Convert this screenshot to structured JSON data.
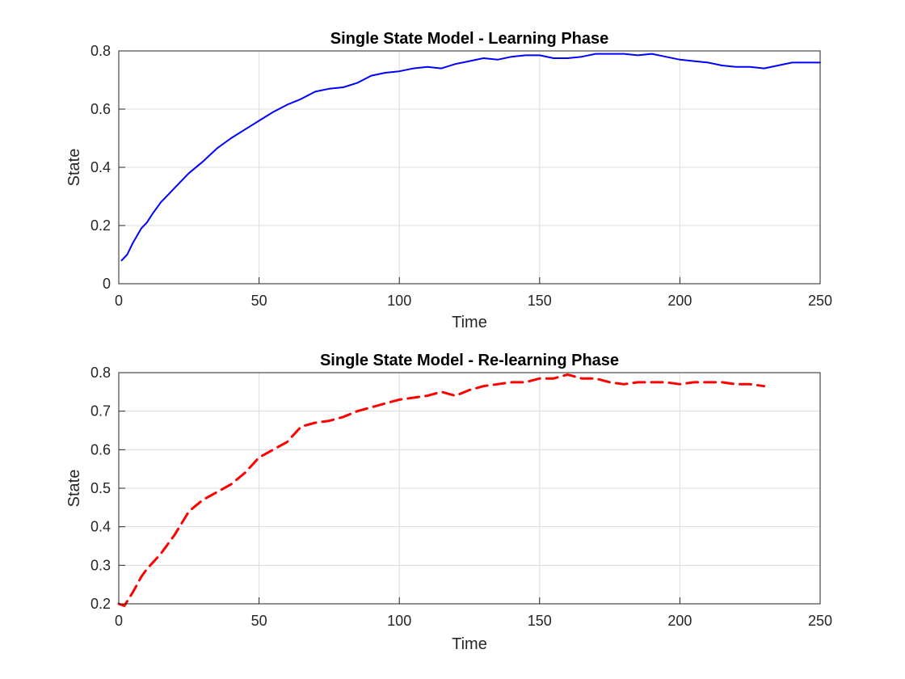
{
  "chart_data": [
    {
      "type": "line",
      "title": "Single State Model - Learning Phase",
      "xlabel": "Time",
      "ylabel": "State",
      "xlim": [
        0,
        250
      ],
      "ylim": [
        0,
        0.8
      ],
      "xticks": [
        "0",
        "50",
        "100",
        "150",
        "200",
        "250"
      ],
      "yticks": [
        "0",
        "0.2",
        "0.4",
        "0.6",
        "0.8"
      ],
      "grid": true,
      "series": [
        {
          "color": "#0000ff",
          "style": "solid",
          "x": [
            1,
            3,
            5,
            8,
            10,
            12,
            15,
            18,
            20,
            25,
            30,
            35,
            40,
            45,
            50,
            55,
            60,
            65,
            70,
            75,
            80,
            85,
            90,
            95,
            100,
            105,
            110,
            115,
            120,
            125,
            130,
            135,
            140,
            145,
            150,
            155,
            160,
            165,
            170,
            175,
            180,
            185,
            190,
            195,
            200,
            205,
            210,
            215,
            220,
            225,
            230,
            235,
            240,
            245,
            250
          ],
          "y": [
            0.08,
            0.1,
            0.14,
            0.19,
            0.21,
            0.24,
            0.28,
            0.31,
            0.33,
            0.38,
            0.42,
            0.465,
            0.5,
            0.53,
            0.56,
            0.59,
            0.615,
            0.635,
            0.66,
            0.67,
            0.675,
            0.69,
            0.715,
            0.725,
            0.73,
            0.74,
            0.745,
            0.74,
            0.755,
            0.765,
            0.775,
            0.77,
            0.78,
            0.785,
            0.785,
            0.775,
            0.775,
            0.78,
            0.79,
            0.79,
            0.79,
            0.785,
            0.79,
            0.78,
            0.77,
            0.765,
            0.76,
            0.75,
            0.745,
            0.745,
            0.74,
            0.75,
            0.76,
            0.76,
            0.76
          ]
        }
      ]
    },
    {
      "type": "line",
      "title": "Single State Model - Re-learning Phase",
      "xlabel": "Time",
      "ylabel": "State",
      "xlim": [
        0,
        250
      ],
      "ylim": [
        0.2,
        0.8
      ],
      "xticks": [
        "0",
        "50",
        "100",
        "150",
        "200",
        "250"
      ],
      "yticks": [
        "0.2",
        "0.3",
        "0.4",
        "0.5",
        "0.6",
        "0.7",
        "0.8"
      ],
      "grid": true,
      "series": [
        {
          "color": "#ff0000",
          "style": "dashed",
          "x": [
            0,
            2,
            5,
            8,
            10,
            15,
            20,
            25,
            30,
            35,
            40,
            45,
            50,
            55,
            60,
            65,
            70,
            75,
            80,
            85,
            90,
            95,
            100,
            105,
            110,
            115,
            120,
            125,
            130,
            135,
            140,
            145,
            150,
            155,
            160,
            165,
            170,
            175,
            180,
            185,
            190,
            195,
            200,
            205,
            210,
            215,
            220,
            225,
            230
          ],
          "y": [
            0.2,
            0.195,
            0.23,
            0.27,
            0.29,
            0.33,
            0.38,
            0.44,
            0.47,
            0.49,
            0.51,
            0.54,
            0.58,
            0.6,
            0.62,
            0.66,
            0.67,
            0.675,
            0.685,
            0.7,
            0.71,
            0.72,
            0.73,
            0.735,
            0.74,
            0.75,
            0.74,
            0.755,
            0.765,
            0.77,
            0.775,
            0.775,
            0.785,
            0.785,
            0.795,
            0.785,
            0.785,
            0.775,
            0.77,
            0.775,
            0.775,
            0.775,
            0.77,
            0.775,
            0.775,
            0.775,
            0.77,
            0.77,
            0.765
          ]
        }
      ]
    }
  ]
}
